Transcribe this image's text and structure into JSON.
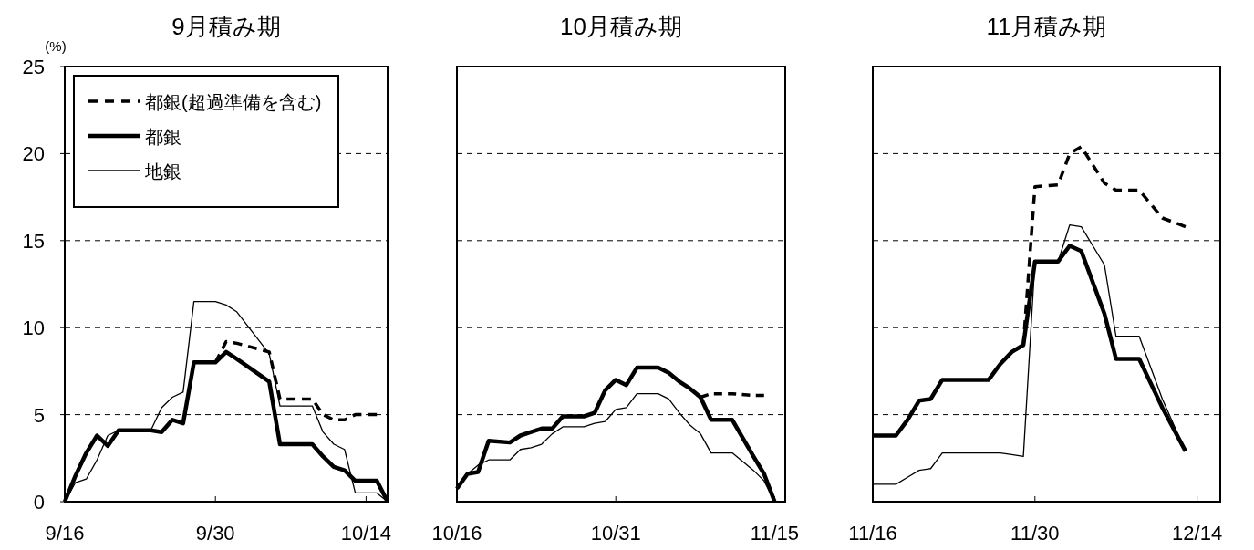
{
  "chart_data": [
    {
      "type": "line",
      "title": "9月積み期",
      "ylabel": "(%)",
      "grid": "y",
      "legend": "top left",
      "xlim": [
        "--09-16",
        "--10-16"
      ],
      "xticks": [
        {
          "value": "--09-16",
          "label": "9/16"
        },
        {
          "value": "--09-30",
          "label": "9/30"
        },
        {
          "value": "--10-14",
          "label": "10/14"
        }
      ],
      "ylim": [
        0,
        25
      ],
      "yticks": [
        0,
        5,
        10,
        15,
        20,
        25
      ],
      "series": [
        {
          "name": "都銀(超過準備を含む)",
          "color": "#000000",
          "line_style": "dashed",
          "x": [
            "--09-30",
            "--10-01",
            "--10-02",
            "--10-05",
            "--10-06",
            "--10-09",
            "--10-10",
            "--10-11",
            "--10-12",
            "--10-13",
            "--10-15"
          ],
          "values": [
            8.0,
            9.2,
            9.1,
            8.6,
            5.9,
            5.9,
            5.0,
            4.7,
            4.7,
            5.0,
            5.0
          ]
        },
        {
          "name": "都銀",
          "color": "#000000",
          "line_style": "solid",
          "x": [
            "--09-16",
            "--09-17",
            "--09-18",
            "--09-19",
            "--09-20",
            "--09-21",
            "--09-24",
            "--09-25",
            "--09-26",
            "--09-27",
            "--09-28",
            "--09-30",
            "--10-01",
            "--10-02",
            "--10-05",
            "--10-06",
            "--10-09",
            "--10-10",
            "--10-11",
            "--10-12",
            "--10-13",
            "--10-15",
            "--10-16"
          ],
          "values": [
            0,
            1.5,
            2.8,
            3.8,
            3.2,
            4.1,
            4.1,
            4.0,
            4.7,
            4.5,
            8.0,
            8.0,
            8.6,
            8.2,
            6.9,
            3.3,
            3.3,
            2.6,
            2.0,
            1.8,
            1.2,
            1.2,
            0
          ]
        },
        {
          "name": "地銀",
          "color": "#000000",
          "line_style": "solid",
          "x": [
            "--09-16",
            "--09-17",
            "--09-18",
            "--09-19",
            "--09-20",
            "--09-21",
            "--09-24",
            "--09-25",
            "--09-26",
            "--09-27",
            "--09-28",
            "--09-30",
            "--10-01",
            "--10-02",
            "--10-05",
            "--10-06",
            "--10-09",
            "--10-10",
            "--10-11",
            "--10-12",
            "--10-13",
            "--10-15",
            "--10-16"
          ],
          "values": [
            0,
            1.1,
            1.3,
            2.4,
            3.8,
            4.1,
            4.1,
            5.4,
            6.0,
            6.3,
            11.5,
            11.5,
            11.3,
            10.9,
            8.5,
            5.5,
            5.5,
            4.0,
            3.3,
            3.0,
            0.5,
            0.5,
            0
          ]
        }
      ]
    },
    {
      "type": "line",
      "title": "10月積み期",
      "grid": "y",
      "tick_labels": "x",
      "xlim": [
        "--10-16",
        "--11-16"
      ],
      "xticks": [
        {
          "value": "--10-16",
          "label": "10/16"
        },
        {
          "value": "--10-31",
          "label": "10/31"
        },
        {
          "value": "--11-15",
          "label": "11/15"
        }
      ],
      "ylim": [
        0,
        25
      ],
      "yticks": [
        0,
        5,
        10,
        15,
        20,
        25
      ],
      "series": [
        {
          "color": "#000000",
          "line_style": "dashed",
          "x": [
            "--11-08",
            "--11-09",
            "--11-11",
            "--11-13",
            "--11-14"
          ],
          "values": [
            6.0,
            6.2,
            6.2,
            6.1,
            6.1
          ]
        },
        {
          "color": "#000000",
          "line_style": "solid",
          "x": [
            "--10-16",
            "--10-17",
            "--10-18",
            "--10-19",
            "--10-21",
            "--10-22",
            "--10-23",
            "--10-24",
            "--10-25",
            "--10-26",
            "--10-28",
            "--10-29",
            "--10-30",
            "--10-31",
            "--11-01",
            "--11-02",
            "--11-04",
            "--11-05",
            "--11-06",
            "--11-07",
            "--11-08",
            "--11-09",
            "--11-11",
            "--11-13",
            "--11-14",
            "--11-15"
          ],
          "values": [
            0.75,
            1.6,
            1.7,
            3.5,
            3.4,
            3.8,
            4.0,
            4.2,
            4.2,
            4.9,
            4.9,
            5.1,
            6.4,
            7.0,
            6.7,
            7.7,
            7.7,
            7.4,
            6.9,
            6.5,
            6.0,
            4.7,
            4.7,
            2.6,
            1.6,
            0
          ]
        },
        {
          "color": "#000000",
          "line_style": "solid",
          "x": [
            "--10-16",
            "--10-17",
            "--10-18",
            "--10-19",
            "--10-21",
            "--10-22",
            "--10-23",
            "--10-24",
            "--10-25",
            "--10-26",
            "--10-28",
            "--10-29",
            "--10-30",
            "--10-31",
            "--11-01",
            "--11-02",
            "--11-04",
            "--11-05",
            "--11-06",
            "--11-07",
            "--11-08",
            "--11-09",
            "--11-11",
            "--11-13",
            "--11-14",
            "--11-15"
          ],
          "values": [
            0.75,
            1.6,
            2.1,
            2.4,
            2.4,
            3.0,
            3.1,
            3.3,
            3.9,
            4.3,
            4.3,
            4.5,
            4.6,
            5.3,
            5.4,
            6.2,
            6.2,
            5.9,
            5.1,
            4.4,
            3.9,
            2.8,
            2.8,
            1.8,
            1.2,
            0
          ]
        }
      ]
    },
    {
      "type": "line",
      "title": "11月積み期",
      "grid": "y",
      "tick_labels": "x",
      "xlim": [
        "--11-16",
        "--12-16"
      ],
      "xticks": [
        {
          "value": "--11-16",
          "label": "11/16"
        },
        {
          "value": "--11-30",
          "label": "11/30"
        },
        {
          "value": "--12-14",
          "label": "12/14"
        }
      ],
      "ylim": [
        0,
        25
      ],
      "yticks": [
        0,
        5,
        10,
        15,
        20,
        25
      ],
      "series": [
        {
          "color": "#000000",
          "line_style": "dashed",
          "x": [
            "--11-29",
            "--11-30",
            "--12-02",
            "--12-03",
            "--12-04",
            "--12-06",
            "--12-07",
            "--12-09",
            "--12-11",
            "--12-13"
          ],
          "values": [
            9.0,
            18.1,
            18.2,
            20.0,
            20.4,
            18.3,
            17.9,
            17.9,
            16.3,
            15.8
          ]
        },
        {
          "color": "#000000",
          "line_style": "solid",
          "x": [
            "--11-16",
            "--11-18",
            "--11-19",
            "--11-20",
            "--11-21",
            "--11-22",
            "--11-26",
            "--11-27",
            "--11-28",
            "--11-29",
            "--11-30",
            "--12-02",
            "--12-03",
            "--12-04",
            "--12-06",
            "--12-07",
            "--12-09",
            "--12-11",
            "--12-13"
          ],
          "values": [
            3.8,
            3.8,
            4.7,
            5.8,
            5.9,
            7.0,
            7.0,
            7.9,
            8.6,
            9.0,
            13.8,
            13.8,
            14.7,
            14.4,
            10.8,
            8.2,
            8.2,
            5.4,
            2.9
          ]
        },
        {
          "color": "#000000",
          "line_style": "solid",
          "x": [
            "--11-16",
            "--11-18",
            "--11-19",
            "--11-20",
            "--11-21",
            "--11-22",
            "--11-26",
            "--11-27",
            "--11-28",
            "--11-29",
            "--11-30",
            "--12-02",
            "--12-03",
            "--12-04",
            "--12-06",
            "--12-07",
            "--12-09",
            "--12-11",
            "--12-13"
          ],
          "values": [
            1.0,
            1.0,
            1.4,
            1.8,
            1.9,
            2.8,
            2.8,
            2.8,
            2.7,
            2.6,
            13.8,
            13.8,
            15.9,
            15.8,
            13.6,
            9.5,
            9.5,
            5.9,
            2.9
          ]
        }
      ]
    }
  ]
}
